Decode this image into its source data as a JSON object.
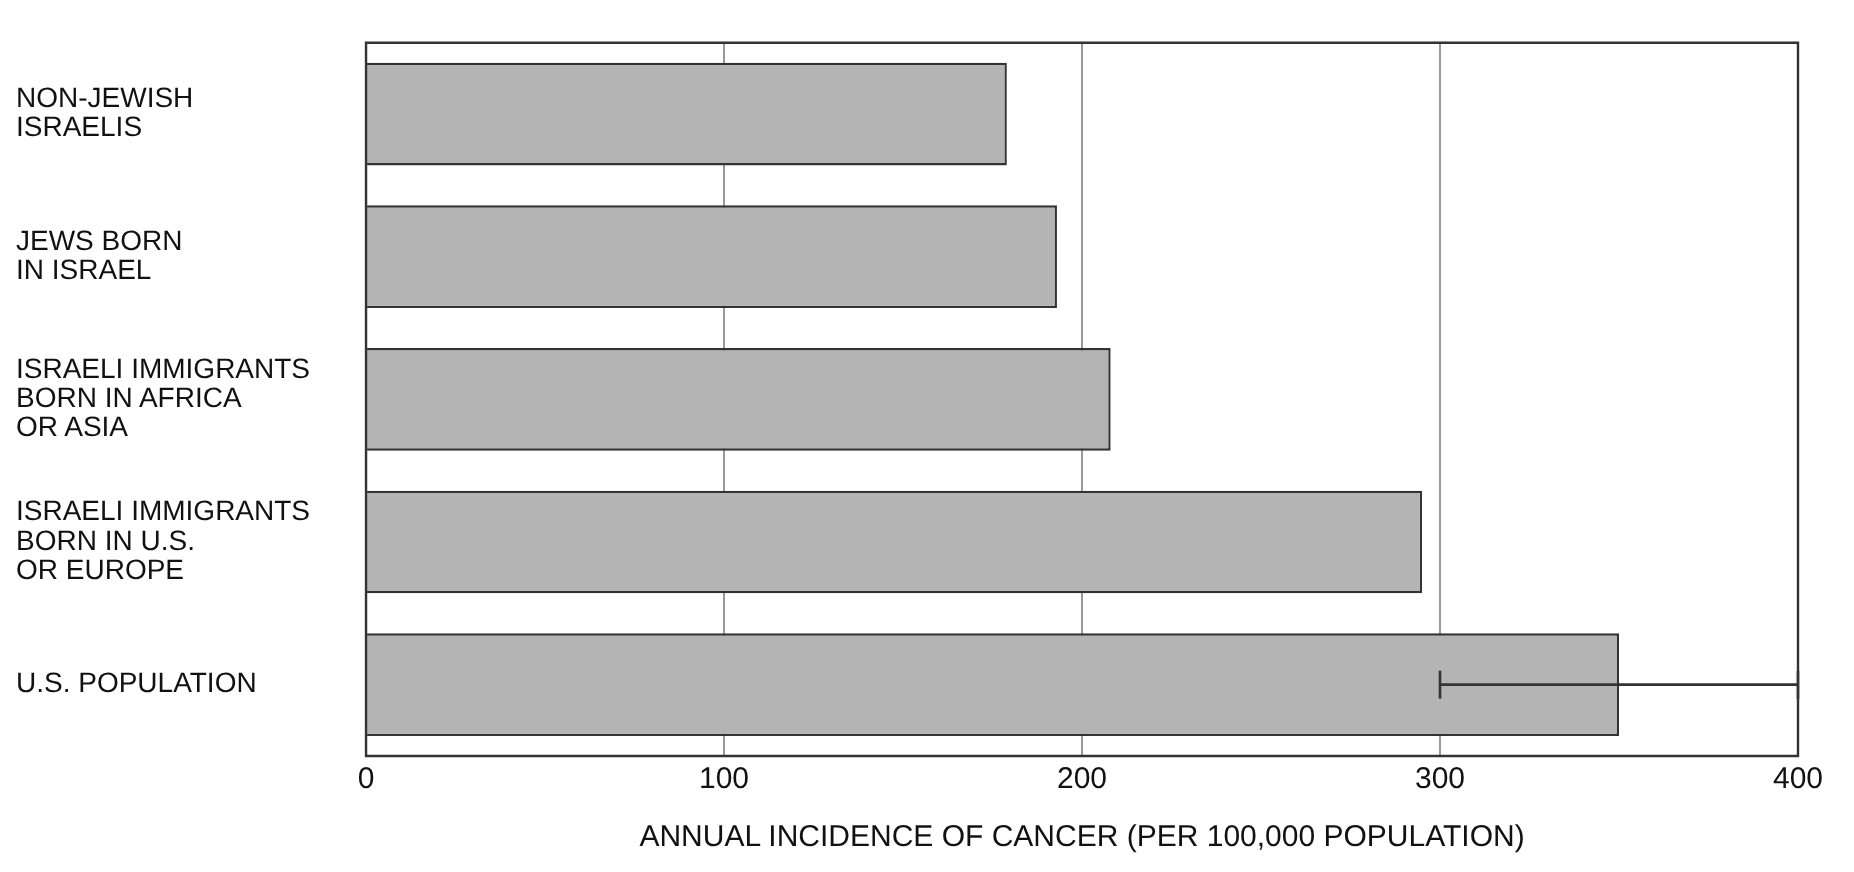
{
  "chart_data": {
    "type": "bar",
    "orientation": "horizontal",
    "xlabel": "ANNUAL INCIDENCE OF CANCER (PER 100,000 POPULATION)",
    "categories": [
      "NON-JEWISH\nISRAELIS",
      "JEWS BORN\nIN ISRAEL",
      "ISRAELI IMMIGRANTS\nBORN IN AFRICA\nOR ASIA",
      "ISRAELI IMMIGRANTS\nBORN IN U.S.\nOR EUROPE",
      "U.S. POPULATION"
    ],
    "values": [
      179,
      193,
      208,
      295,
      350
    ],
    "errors": [
      null,
      null,
      null,
      null,
      [
        300,
        400
      ]
    ],
    "color": "#b4b4b4",
    "xlim": [
      0,
      400
    ],
    "xticks": [
      0,
      100,
      200,
      300,
      400
    ],
    "grid": "x",
    "legend": false
  }
}
